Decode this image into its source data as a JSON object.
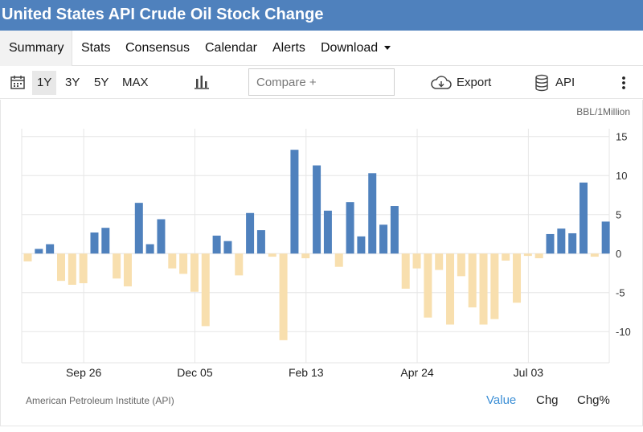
{
  "title": "United States API Crude Oil Stock Change",
  "tabs": [
    {
      "label": "Summary",
      "active": true
    },
    {
      "label": "Stats"
    },
    {
      "label": "Consensus"
    },
    {
      "label": "Calendar"
    },
    {
      "label": "Alerts"
    },
    {
      "label": "Download"
    }
  ],
  "toolbar": {
    "ranges": [
      "1Y",
      "3Y",
      "5Y",
      "MAX"
    ],
    "active_range": "1Y",
    "compare_placeholder": "Compare +",
    "export_label": "Export",
    "api_label": "API"
  },
  "colors": {
    "positive": "#4f81bd",
    "negative": "#f8dfae",
    "header": "#4f81bd",
    "active_mode": "#3c8fd6"
  },
  "icons": [
    "calendar-icon",
    "bar-chart-icon",
    "cloud-download-icon",
    "database-icon",
    "more-vertical-icon"
  ],
  "chart_data": {
    "type": "bar",
    "unit": "BBL/1Million",
    "ylim": [
      -14,
      16
    ],
    "yticks": [
      15,
      10,
      5,
      0,
      -5,
      -10
    ],
    "xtick_labels": [
      "Sep 26",
      "Dec 05",
      "Feb 13",
      "Apr 24",
      "Jul 03"
    ],
    "grid": true,
    "values": [
      -1.0,
      0.6,
      1.2,
      -3.5,
      -4.0,
      -3.8,
      2.7,
      3.3,
      -3.2,
      -4.2,
      6.5,
      1.2,
      4.4,
      -1.9,
      -2.6,
      -4.9,
      -9.3,
      2.3,
      1.6,
      -2.8,
      5.2,
      3.0,
      -0.4,
      -11.1,
      13.3,
      -0.6,
      11.3,
      5.5,
      -1.7,
      6.6,
      2.2,
      10.3,
      3.7,
      6.1,
      -4.5,
      -1.9,
      -8.2,
      -2.1,
      -9.1,
      -2.9,
      -6.9,
      -9.1,
      -8.4,
      -0.9,
      -6.3,
      -0.3,
      -0.6,
      2.5,
      3.2,
      2.6,
      9.1,
      -0.4,
      4.1
    ],
    "source": "American Petroleum Institute (API)",
    "modes": [
      "Value",
      "Chg",
      "Chg%"
    ],
    "active_mode": "Value"
  }
}
